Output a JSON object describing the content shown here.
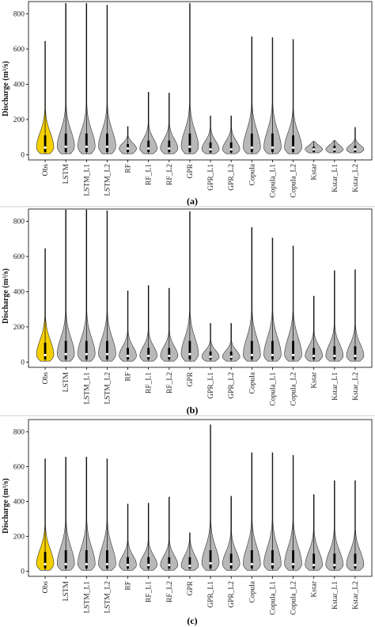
{
  "colors": {
    "obs_fill": "#f5d000",
    "model_fill": "#b8b8b8",
    "outline": "#333333",
    "whisker": "#000000",
    "median_dot": "#ffffff"
  },
  "chart_data": [
    {
      "type": "violin",
      "panel_label": "(a)",
      "ylabel": "Discharge (m³/s)",
      "yticks": [
        0,
        200,
        400,
        600,
        800
      ],
      "ylim": [
        -30,
        870
      ],
      "categories": [
        "Obs",
        "LSTM",
        "LSTM_L1",
        "LSTM_L2",
        "RF",
        "RF_L1",
        "RF_L2",
        "GPR",
        "GPR_L1",
        "GPR_L2",
        "Copula",
        "Copula_L1",
        "Copula_L2",
        "Kstar",
        "Kstar_L1",
        "Kstar_L2"
      ],
      "max": [
        645,
        860,
        860,
        850,
        160,
        355,
        350,
        860,
        220,
        220,
        670,
        665,
        655,
        75,
        80,
        155
      ],
      "q3": [
        110,
        120,
        120,
        120,
        60,
        80,
        80,
        120,
        70,
        70,
        120,
        120,
        110,
        45,
        50,
        50
      ],
      "median": [
        40,
        45,
        45,
        45,
        35,
        35,
        35,
        45,
        30,
        30,
        40,
        40,
        40,
        30,
        30,
        30
      ],
      "q1": [
        15,
        15,
        15,
        15,
        15,
        15,
        15,
        15,
        12,
        12,
        15,
        15,
        15,
        15,
        15,
        15
      ],
      "min": [
        5,
        5,
        5,
        5,
        5,
        5,
        5,
        5,
        5,
        5,
        5,
        5,
        5,
        10,
        10,
        10
      ]
    },
    {
      "type": "violin",
      "panel_label": "(b)",
      "ylabel": "Discharge (m³/s)",
      "yticks": [
        0,
        200,
        400,
        600,
        800
      ],
      "ylim": [
        -30,
        870
      ],
      "categories": [
        "Obs",
        "LSTM",
        "LSTM_L1",
        "LSTM_L2",
        "RF",
        "RF_L1",
        "RF_L2",
        "GPR",
        "GPR_L1",
        "GPR_L2",
        "Copula",
        "Copula_L1",
        "Copula_L2",
        "Kstar",
        "Kstar_L1",
        "Kstar_L2"
      ],
      "max": [
        645,
        865,
        865,
        860,
        405,
        435,
        420,
        855,
        220,
        220,
        765,
        705,
        660,
        375,
        520,
        525
      ],
      "q3": [
        110,
        120,
        120,
        120,
        80,
        80,
        80,
        120,
        60,
        60,
        120,
        120,
        120,
        80,
        90,
        90
      ],
      "median": [
        40,
        45,
        45,
        45,
        35,
        35,
        35,
        45,
        30,
        30,
        40,
        40,
        40,
        35,
        35,
        35
      ],
      "q1": [
        15,
        15,
        15,
        15,
        15,
        15,
        15,
        15,
        15,
        15,
        15,
        15,
        15,
        15,
        15,
        15
      ],
      "min": [
        5,
        5,
        5,
        5,
        5,
        5,
        5,
        5,
        5,
        5,
        5,
        5,
        5,
        5,
        5,
        5
      ]
    },
    {
      "type": "violin",
      "panel_label": "(c)",
      "ylabel": "Discharge (m³/s)",
      "yticks": [
        0,
        200,
        400,
        600,
        800
      ],
      "ylim": [
        -30,
        870
      ],
      "categories": [
        "Obs",
        "LSTM",
        "LSTM_L1",
        "LSTM_L2",
        "RF",
        "RF_L1",
        "RF_L2",
        "GPR",
        "GPR_L1",
        "GPR_L2",
        "Copula",
        "Copula_L1",
        "Copula_L2",
        "Kstar",
        "Kstar_L1",
        "Kstar_L2"
      ],
      "max": [
        645,
        655,
        655,
        645,
        385,
        390,
        425,
        220,
        840,
        430,
        680,
        680,
        665,
        440,
        520,
        520
      ],
      "q3": [
        110,
        120,
        120,
        120,
        80,
        80,
        80,
        80,
        120,
        100,
        120,
        120,
        120,
        100,
        100,
        100
      ],
      "median": [
        40,
        40,
        40,
        40,
        35,
        35,
        35,
        30,
        45,
        40,
        40,
        40,
        40,
        35,
        35,
        35
      ],
      "q1": [
        15,
        15,
        15,
        15,
        15,
        15,
        15,
        15,
        15,
        15,
        15,
        15,
        15,
        15,
        15,
        15
      ],
      "min": [
        5,
        5,
        5,
        5,
        5,
        5,
        5,
        5,
        5,
        5,
        5,
        5,
        5,
        5,
        5,
        5
      ]
    }
  ]
}
